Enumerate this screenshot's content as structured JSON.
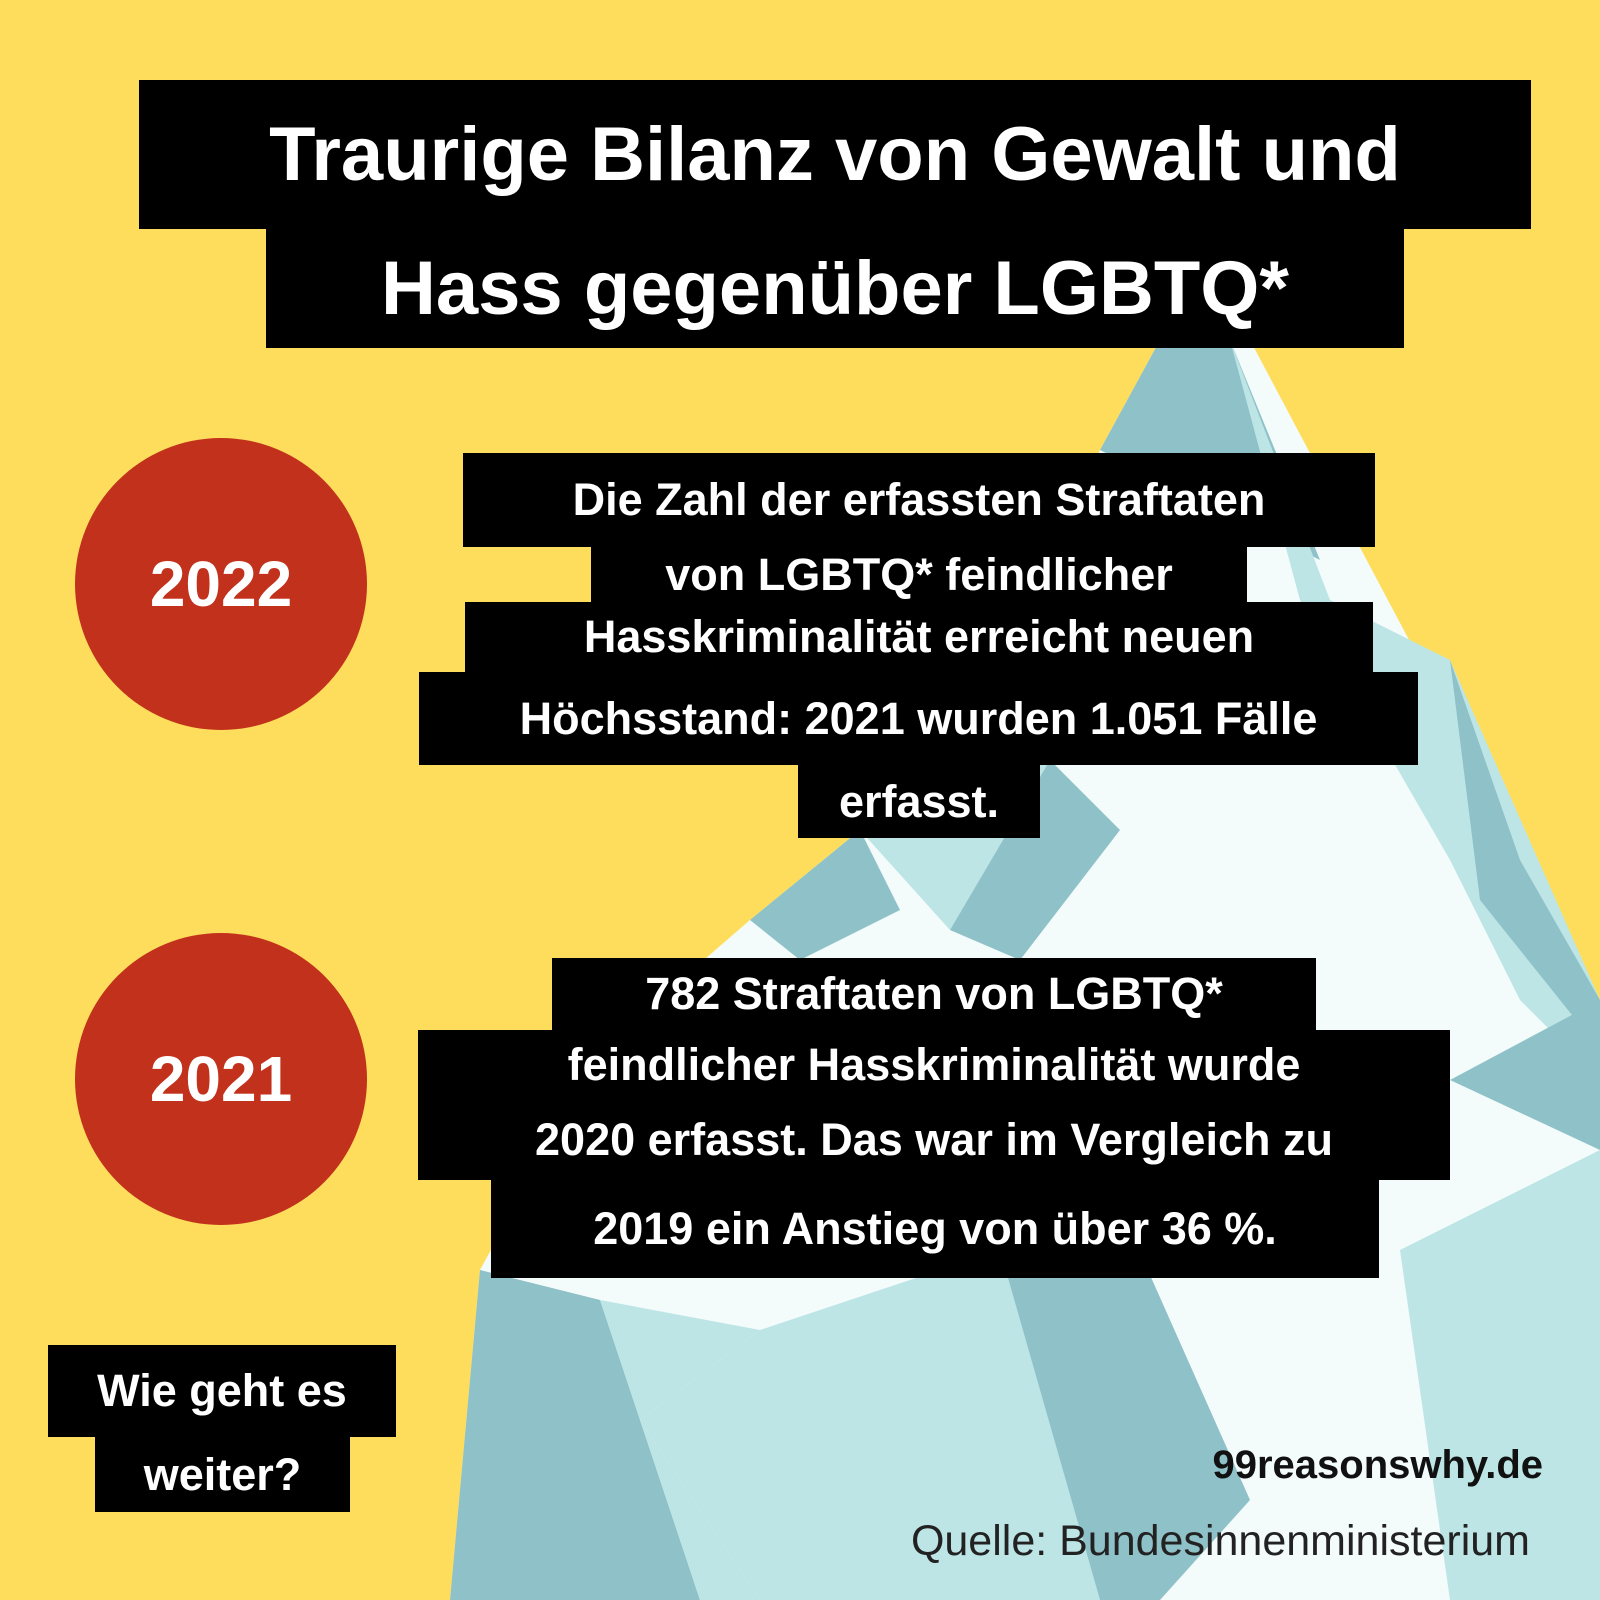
{
  "header": {
    "title": [
      "Traurige Bilanz von Gewalt und",
      "Hass gegenüber LGBTQ*"
    ]
  },
  "items": [
    {
      "year": "2022",
      "text": [
        "Die Zahl der erfassten Straftaten",
        "von LGBTQ* feindlicher",
        "Hasskriminalität erreicht neuen",
        "Höchsstand: 2021 wurden 1.051 Fälle",
        "erfasst."
      ]
    },
    {
      "year": "2021",
      "text": [
        "782 Straftaten von LGBTQ*",
        "feindlicher Hasskriminalität  wurde",
        "2020 erfasst. Das war im Vergleich zu",
        "2019 ein Anstieg von über 36 %."
      ]
    }
  ],
  "question": [
    "Wie geht es",
    "weiter?"
  ],
  "website": "99reasonswhy.de",
  "source": "Quelle: Bundesinnenministerium"
}
